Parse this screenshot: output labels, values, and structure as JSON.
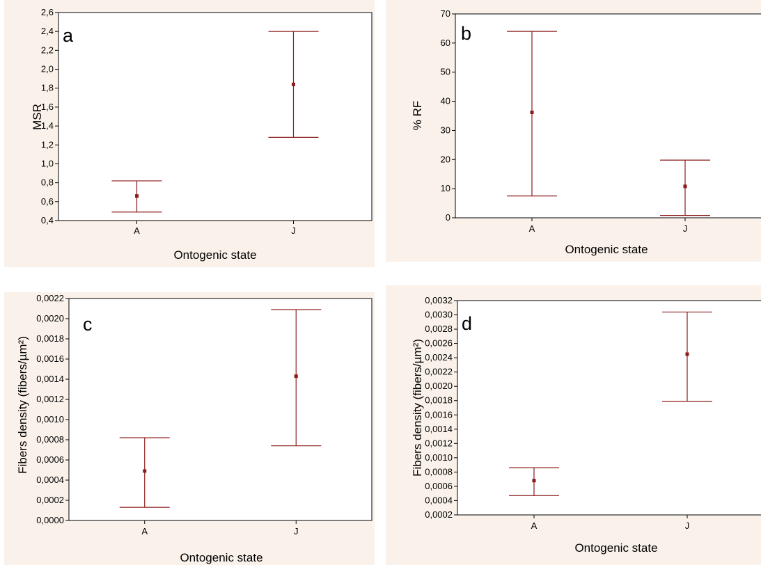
{
  "chart_data": [
    {
      "type": "scatter",
      "panel_label": "a",
      "xlabel": "Ontogenic state",
      "ylabel": "MSR",
      "categories": [
        "A",
        "J"
      ],
      "mean": [
        0.66,
        1.84
      ],
      "lower": [
        0.49,
        1.28
      ],
      "upper": [
        0.82,
        2.4
      ],
      "ylim": [
        0.4,
        2.6
      ],
      "yticks": [
        "0,4",
        "0,6",
        "0,8",
        "1,0",
        "1,2",
        "1,4",
        "1,6",
        "1,8",
        "2,0",
        "2,2",
        "2,4",
        "2,6"
      ],
      "grid": false,
      "color": "#8b1a1a"
    },
    {
      "type": "scatter",
      "panel_label": "b",
      "xlabel": "Ontogenic state",
      "ylabel": "% RF",
      "categories": [
        "A",
        "J"
      ],
      "mean": [
        36.2,
        10.8
      ],
      "lower": [
        7.5,
        0.8
      ],
      "upper": [
        64.0,
        19.8
      ],
      "ylim": [
        0,
        70
      ],
      "yticks": [
        "0",
        "10",
        "20",
        "30",
        "40",
        "50",
        "60",
        "70"
      ],
      "grid": false,
      "color": "#8b1a1a"
    },
    {
      "type": "scatter",
      "panel_label": "c",
      "xlabel": "Ontogenic state",
      "ylabel": "Fibers density (fibers/µm²)",
      "categories": [
        "A",
        "J"
      ],
      "mean": [
        0.00049,
        0.00143
      ],
      "lower": [
        0.00013,
        0.00074
      ],
      "upper": [
        0.00082,
        0.00209
      ],
      "ylim": [
        0,
        0.0022
      ],
      "yticks": [
        "0,0000",
        "0,0002",
        "0,0004",
        "0,0006",
        "0,0008",
        "0,0010",
        "0,0012",
        "0,0014",
        "0,0016",
        "0,0018",
        "0,0020",
        "0,0022"
      ],
      "grid": false,
      "color": "#8b1a1a"
    },
    {
      "type": "scatter",
      "panel_label": "d",
      "xlabel": "Ontogenic state",
      "ylabel": "Fibers density (fibers/µm²)",
      "categories": [
        "A",
        "J"
      ],
      "mean": [
        0.00068,
        0.00245
      ],
      "lower": [
        0.00047,
        0.00179
      ],
      "upper": [
        0.00086,
        0.00304
      ],
      "ylim": [
        0.0002,
        0.0032
      ],
      "yticks": [
        "0,0002",
        "0,0004",
        "0,0006",
        "0,0008",
        "0,0010",
        "0,0012",
        "0,0014",
        "0,0016",
        "0,0018",
        "0,0020",
        "0,0022",
        "0,0024",
        "0,0026",
        "0,0028",
        "0,0030",
        "0,0032"
      ],
      "grid": false,
      "color": "#8b1a1a"
    }
  ]
}
